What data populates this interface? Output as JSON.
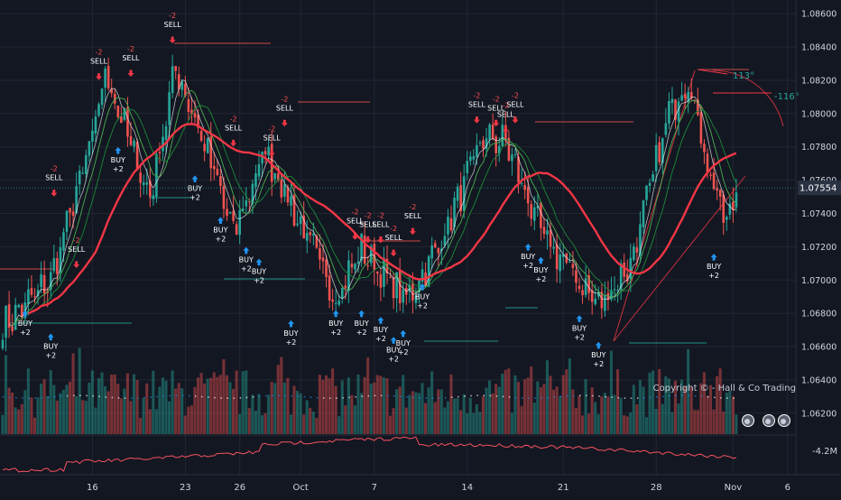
{
  "chart_data": {
    "type": "candlestick",
    "instrument": "",
    "y_axis": {
      "min": 1.0615,
      "max": 1.0865,
      "ticks": [
        "1.08600",
        "1.08400",
        "1.08200",
        "1.08000",
        "1.07800",
        "1.07600",
        "1.07400",
        "1.07200",
        "1.07000",
        "1.06800",
        "1.06600",
        "1.06400",
        "1.06200"
      ],
      "current_price": "1.07554",
      "grid": true
    },
    "x_axis": {
      "ticks": [
        "16",
        "23",
        "26",
        "Oct",
        "7",
        "14",
        "21",
        "28",
        "Nov",
        "6"
      ]
    },
    "anchors": [
      {
        "t": 0,
        "p": 1.0672
      },
      {
        "t": 15,
        "p": 1.07
      },
      {
        "t": 28,
        "p": 1.0785
      },
      {
        "t": 32,
        "p": 1.0825
      },
      {
        "t": 42,
        "p": 1.077
      },
      {
        "t": 46,
        "p": 1.075
      },
      {
        "t": 54,
        "p": 1.0828
      },
      {
        "t": 65,
        "p": 1.077
      },
      {
        "t": 72,
        "p": 1.0728
      },
      {
        "t": 82,
        "p": 1.0778
      },
      {
        "t": 90,
        "p": 1.0745
      },
      {
        "t": 104,
        "p": 1.069
      },
      {
        "t": 112,
        "p": 1.0718
      },
      {
        "t": 126,
        "p": 1.0688
      },
      {
        "t": 136,
        "p": 1.072
      },
      {
        "t": 150,
        "p": 1.0785
      },
      {
        "t": 157,
        "p": 1.0783
      },
      {
        "t": 168,
        "p": 1.0728
      },
      {
        "t": 186,
        "p": 1.0685
      },
      {
        "t": 196,
        "p": 1.071
      },
      {
        "t": 208,
        "p": 1.08
      },
      {
        "t": 214,
        "p": 1.0822
      },
      {
        "t": 220,
        "p": 1.077
      },
      {
        "t": 226,
        "p": 1.0732
      },
      {
        "t": 229,
        "p": 1.0755
      }
    ],
    "signals": [
      {
        "type": "buy",
        "price": 1.0684,
        "label": "BUY",
        "value": "+2"
      },
      {
        "type": "buy",
        "price": 1.067,
        "label": "BUY",
        "value": "+2"
      },
      {
        "type": "sell",
        "price": 1.0748,
        "label": "SELL",
        "value": "-2"
      },
      {
        "type": "sell",
        "price": 1.0705,
        "label": "SELL",
        "value": "-2"
      },
      {
        "type": "sell",
        "price": 1.0818,
        "label": "SELL",
        "value": "-2"
      },
      {
        "type": "buy",
        "price": 1.0782,
        "label": "BUY",
        "value": "+2"
      },
      {
        "type": "sell",
        "price": 1.082,
        "label": "SELL",
        "value": "-2"
      },
      {
        "type": "sell",
        "price": 1.084,
        "label": "SELL",
        "value": "-2"
      },
      {
        "type": "buy",
        "price": 1.0765,
        "label": "BUY",
        "value": "+2"
      },
      {
        "type": "buy",
        "price": 1.074,
        "label": "BUY",
        "value": "+2"
      },
      {
        "type": "sell",
        "price": 1.0778,
        "label": "SELL",
        "value": "-2"
      },
      {
        "type": "buy",
        "price": 1.0722,
        "label": "BUY",
        "value": "+2"
      },
      {
        "type": "buy",
        "price": 1.0715,
        "label": "BUY",
        "value": "+2"
      },
      {
        "type": "sell",
        "price": 1.0772,
        "label": "SELL",
        "value": "-2"
      },
      {
        "type": "sell",
        "price": 1.079,
        "label": "SELL",
        "value": "-2"
      },
      {
        "type": "buy",
        "price": 1.0678,
        "label": "BUY",
        "value": "+2"
      },
      {
        "type": "buy",
        "price": 1.0684,
        "label": "BUY",
        "value": "+2"
      },
      {
        "type": "sell",
        "price": 1.0722,
        "label": "SELL",
        "value": "-2"
      },
      {
        "type": "sell",
        "price": 1.072,
        "label": "SELL",
        "value": "-2"
      },
      {
        "type": "sell",
        "price": 1.072,
        "label": "SELL",
        "value": "-2"
      },
      {
        "type": "buy",
        "price": 1.0684,
        "label": "BUY",
        "value": "+2"
      },
      {
        "type": "buy",
        "price": 1.068,
        "label": "BUY",
        "value": "+2"
      },
      {
        "type": "sell",
        "price": 1.0712,
        "label": "SELL",
        "value": "-2"
      },
      {
        "type": "buy",
        "price": 1.0668,
        "label": "BUY",
        "value": "+2"
      },
      {
        "type": "buy",
        "price": 1.0672,
        "label": "BUY",
        "value": "+2"
      },
      {
        "type": "sell",
        "price": 1.0725,
        "label": "SELL",
        "value": "-2"
      },
      {
        "type": "buy",
        "price": 1.07,
        "label": "BUY",
        "value": "+2"
      },
      {
        "type": "sell",
        "price": 1.0792,
        "label": "SELL",
        "value": "-2"
      },
      {
        "type": "sell",
        "price": 1.079,
        "label": "SELL",
        "value": "-2"
      },
      {
        "type": "sell",
        "price": 1.0786,
        "label": "SELL",
        "value": "-2"
      },
      {
        "type": "sell",
        "price": 1.0792,
        "label": "SELL",
        "value": "-2"
      },
      {
        "type": "buy",
        "price": 1.0724,
        "label": "BUY",
        "value": "+2"
      },
      {
        "type": "buy",
        "price": 1.0716,
        "label": "BUY",
        "value": "+2"
      },
      {
        "type": "buy",
        "price": 1.0681,
        "label": "BUY",
        "value": "+2"
      },
      {
        "type": "buy",
        "price": 1.0665,
        "label": "BUY",
        "value": "+2"
      },
      {
        "type": "buy",
        "price": 1.0718,
        "label": "BUY",
        "value": "+2"
      }
    ],
    "signal_bars": [
      7,
      15,
      16,
      23,
      30,
      36,
      40,
      53,
      60,
      68,
      72,
      76,
      80,
      84,
      88,
      90,
      104,
      110,
      114,
      118,
      112,
      118,
      122,
      122,
      125,
      128,
      131,
      148,
      154,
      157,
      160,
      164,
      168,
      180,
      186,
      222
    ],
    "annotations": [
      {
        "text": "113°",
        "kind": "angle",
        "color": "#26a69a"
      },
      {
        "text": "-116°",
        "kind": "angle",
        "color": "#26a69a"
      }
    ],
    "watermark": "Copyright © - Hall & Co Trading",
    "oscillator": {
      "label": "-4.2M"
    },
    "colors": {
      "background": "#131722",
      "up": "#26a69a",
      "down": "#ef5350",
      "ma_slow": "#f23645",
      "buy": "#2196f3",
      "sell": "#f23645",
      "grid": "#232632",
      "axis_text": "#d1d4dc"
    }
  }
}
